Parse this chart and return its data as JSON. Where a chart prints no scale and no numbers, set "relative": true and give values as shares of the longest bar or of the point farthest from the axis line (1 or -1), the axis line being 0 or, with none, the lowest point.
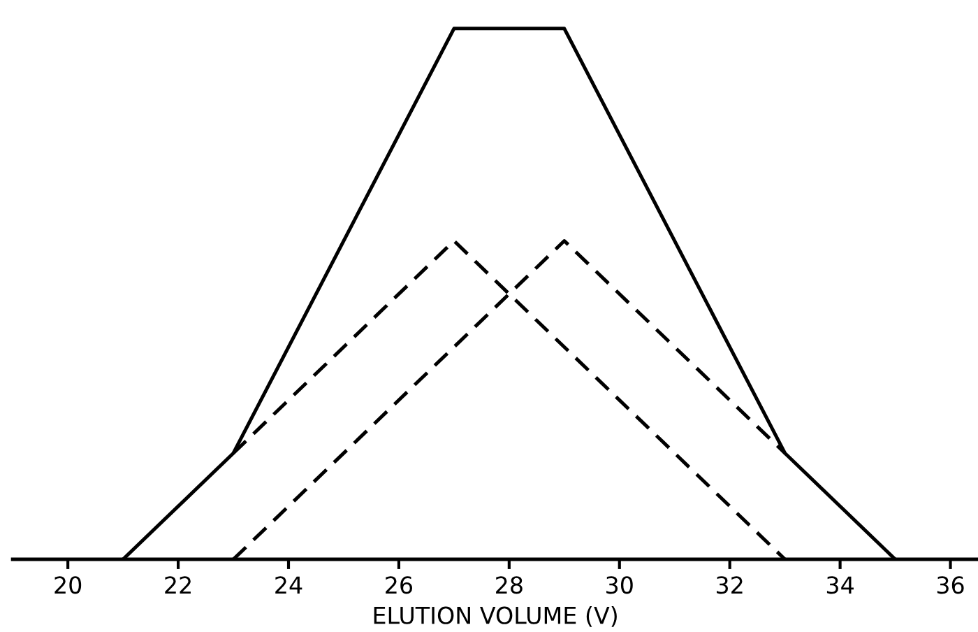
{
  "chart_data": {
    "type": "line",
    "xlabel": "ELUTION VOLUME (V)",
    "relative": true,
    "xlim": [
      19,
      36.5
    ],
    "xticks": [
      20,
      22,
      24,
      26,
      28,
      30,
      32,
      34,
      36
    ],
    "grid": false,
    "marker": "none",
    "tick_labels": "x",
    "series": [
      {
        "color": "#000000",
        "line_style": "solid",
        "x": [
          21,
          23,
          27,
          29,
          33,
          35
        ],
        "values": [
          0,
          0.2,
          1,
          1,
          0.2,
          0
        ]
      },
      {
        "color": "#000000",
        "line_style": "dashed",
        "x": [
          23,
          27,
          33
        ],
        "values": [
          0.2,
          0.6,
          0
        ]
      },
      {
        "color": "#000000",
        "line_style": "dashed",
        "x": [
          23,
          29,
          33
        ],
        "values": [
          0,
          0.6,
          0.2
        ]
      }
    ]
  }
}
